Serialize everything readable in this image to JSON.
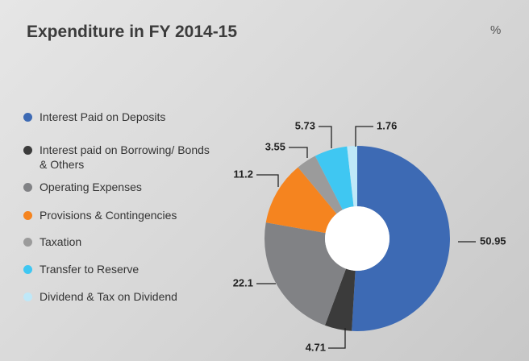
{
  "chart_data": {
    "type": "donut",
    "title": "Expenditure in FY 2014-15",
    "unit": "%",
    "categories": [
      "Interest Paid on Deposits",
      "Interest paid on Borrowing/ Bonds & Others",
      "Operating Expenses",
      "Provisions & Contingencies",
      "Taxation",
      "Transfer to Reserve",
      "Dividend & Tax on Dividend"
    ],
    "values": [
      50.95,
      4.71,
      22.1,
      11.2,
      3.55,
      5.73,
      1.76
    ],
    "colors": [
      "#3d6ab4",
      "#3b3b3b",
      "#818285",
      "#f5841f",
      "#9b9b9b",
      "#3fc7f2",
      "#bfe8f8"
    ]
  }
}
